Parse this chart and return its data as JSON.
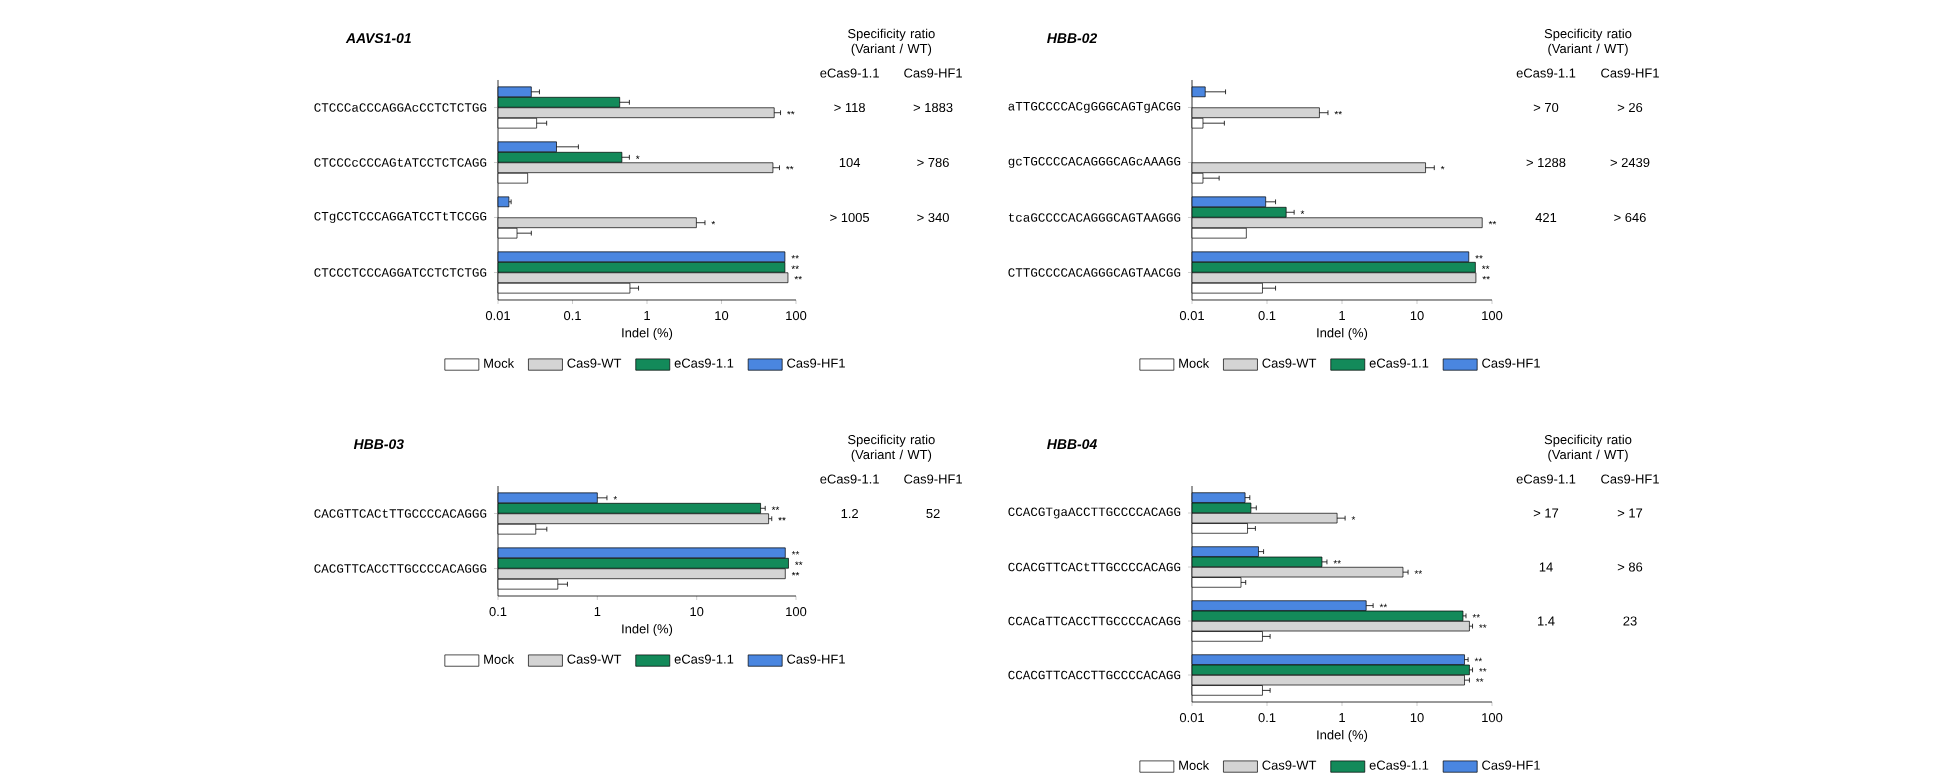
{
  "chart_data": [
    {
      "type": "bar",
      "orientation": "horizontal",
      "log": "x",
      "title": "AAVS1-01",
      "xlabel": "Indel (%)",
      "legend": "bottom",
      "xlim": [
        0.01,
        100
      ],
      "xticks": [
        0.01,
        0.1,
        1,
        10,
        100
      ],
      "categories": [
        "CTCCCaCCCAGGAcCCTCTCTGG",
        "CTCCCcCCCAGtATCCTCTCAGG",
        "CTgCCTCCCAGGATCCTtTCCGG",
        "CTCCCTCCCAGGATCCTCTCTGG"
      ],
      "series": [
        {
          "name": "Mock",
          "color": "#ffffff",
          "values": [
            0.033,
            0.025,
            0.018,
            0.59
          ],
          "errors": [
            [
              0.033,
              0.045
            ],
            null,
            [
              0.018,
              0.028
            ],
            [
              0.59,
              0.77
            ]
          ]
        },
        {
          "name": "Cas9-WT",
          "color": "#d4d4d4",
          "values": [
            51,
            49,
            4.6,
            78
          ],
          "errors": [
            [
              51,
              62
            ],
            [
              49,
              60
            ],
            [
              4.6,
              6.0
            ],
            null
          ],
          "value_labels": [
            "**",
            "**",
            "*",
            "**"
          ]
        },
        {
          "name": "eCas9-1.1",
          "color": "#138a5a",
          "values": [
            0.43,
            0.46,
            null,
            71
          ],
          "errors": [
            [
              0.43,
              0.58
            ],
            [
              0.46,
              0.58
            ],
            null,
            null
          ],
          "value_labels": [
            null,
            "*",
            null,
            "**"
          ]
        },
        {
          "name": "Cas9-HF1",
          "color": "#4a86e0",
          "values": [
            0.028,
            0.061,
            0.014,
            71
          ],
          "errors": [
            [
              0.028,
              0.036
            ],
            [
              0.061,
              0.12
            ],
            [
              0.014,
              0.015
            ],
            null
          ],
          "value_labels": [
            null,
            null,
            null,
            "**"
          ]
        }
      ],
      "annotations": [
        "Specificity ratio (Variant / WT)",
        "eCas9-1.1",
        "Cas9-HF1",
        "> 118",
        "> 1883",
        "104",
        "> 786",
        "> 1005",
        "> 340"
      ]
    },
    {
      "type": "bar",
      "orientation": "horizontal",
      "log": "x",
      "title": "HBB-02",
      "xlabel": "Indel (%)",
      "legend": "bottom",
      "xlim": [
        0.01,
        100
      ],
      "xticks": [
        0.01,
        0.1,
        1,
        10,
        100
      ],
      "categories": [
        "aTTGCCCCACgGGGCAGTgACGG",
        "gcTGCCCCACAGGGCAGcAAAGG",
        "tcaGCCCCACAGGGCAGTAAGGG",
        "CTTGCCCCACAGGGCAGTAACGG"
      ],
      "series": [
        {
          "name": "Mock",
          "color": "#ffffff",
          "values": [
            0.014,
            0.014,
            0.053,
            0.087
          ],
          "errors": [
            [
              0.014,
              0.027
            ],
            [
              0.014,
              0.023
            ],
            null,
            [
              0.087,
              0.13
            ]
          ]
        },
        {
          "name": "Cas9-WT",
          "color": "#d4d4d4",
          "values": [
            0.5,
            13,
            74,
            61
          ],
          "errors": [
            [
              0.5,
              0.65
            ],
            [
              13,
              17
            ],
            null,
            null
          ],
          "value_labels": [
            "**",
            "*",
            "**",
            "**"
          ]
        },
        {
          "name": "eCas9-1.1",
          "color": "#138a5a",
          "values": [
            null,
            null,
            0.18,
            60
          ],
          "errors": [
            null,
            null,
            [
              0.18,
              0.23
            ],
            null
          ],
          "value_labels": [
            null,
            null,
            "*",
            "**"
          ]
        },
        {
          "name": "Cas9-HF1",
          "color": "#4a86e0",
          "values": [
            0.015,
            null,
            0.096,
            49
          ],
          "errors": [
            [
              0.015,
              0.028
            ],
            null,
            [
              0.096,
              0.13
            ],
            null
          ],
          "value_labels": [
            null,
            null,
            null,
            "**"
          ]
        }
      ],
      "annotations": [
        "Specificity ratio (Variant / WT)",
        "eCas9-1.1",
        "Cas9-HF1",
        "> 70",
        "> 26",
        "> 1288",
        "> 2439",
        "421",
        "> 646"
      ]
    },
    {
      "type": "bar",
      "orientation": "horizontal",
      "log": "x",
      "title": "HBB-03",
      "xlabel": "Indel (%)",
      "legend": "bottom",
      "xlim": [
        0.1,
        100
      ],
      "xticks": [
        0.1,
        1,
        10,
        100
      ],
      "categories": [
        "CACGTTCACtTTGCCCCACAGGG",
        "CACGTTCACCTTGCCCCACAGGG"
      ],
      "series": [
        {
          "name": "Mock",
          "color": "#ffffff",
          "values": [
            0.24,
            0.4
          ],
          "errors": [
            [
              0.24,
              0.31
            ],
            [
              0.4,
              0.5
            ]
          ]
        },
        {
          "name": "Cas9-WT",
          "color": "#d4d4d4",
          "values": [
            53,
            78
          ],
          "errors": [
            [
              53,
              57
            ],
            null
          ],
          "value_labels": [
            "**",
            "**"
          ]
        },
        {
          "name": "eCas9-1.1",
          "color": "#138a5a",
          "values": [
            44,
            84
          ],
          "errors": [
            [
              44,
              49
            ],
            null
          ],
          "value_labels": [
            "**",
            "**"
          ]
        },
        {
          "name": "Cas9-HF1",
          "color": "#4a86e0",
          "values": [
            1.0,
            78
          ],
          "errors": [
            [
              1.0,
              1.25
            ],
            null
          ],
          "value_labels": [
            "*",
            "**"
          ]
        }
      ],
      "annotations": [
        "Specificity ratio (Variant / WT)",
        "eCas9-1.1",
        "Cas9-HF1",
        "1.2",
        "52"
      ]
    },
    {
      "type": "bar",
      "orientation": "horizontal",
      "log": "x",
      "title": "HBB-04",
      "xlabel": "Indel (%)",
      "legend": "bottom",
      "xlim": [
        0.01,
        100
      ],
      "xticks": [
        0.01,
        0.1,
        1,
        10,
        100
      ],
      "categories": [
        "CCACGTgaACCTTGCCCCACAGG",
        "CCACGTTCACtTTGCCCCACAGG",
        "CCACaTTCACCTTGCCCCACAGG",
        "CCACGTTCACCTTGCCCCACAGG"
      ],
      "series": [
        {
          "name": "Mock",
          "color": "#ffffff",
          "values": [
            0.055,
            0.045,
            0.087,
            0.087
          ],
          "errors": [
            [
              0.055,
              0.07
            ],
            [
              0.045,
              0.052
            ],
            [
              0.087,
              0.11
            ],
            [
              0.087,
              0.11
            ]
          ]
        },
        {
          "name": "Cas9-WT",
          "color": "#d4d4d4",
          "values": [
            0.86,
            6.5,
            50,
            43
          ],
          "errors": [
            [
              0.86,
              1.1
            ],
            [
              6.5,
              7.6
            ],
            [
              50,
              55
            ],
            [
              43,
              50
            ]
          ],
          "value_labels": [
            "*",
            "**",
            "**",
            "**"
          ]
        },
        {
          "name": "eCas9-1.1",
          "color": "#138a5a",
          "values": [
            0.061,
            0.54,
            41,
            50
          ],
          "errors": [
            [
              0.061,
              0.072
            ],
            [
              0.54,
              0.63
            ],
            [
              41,
              45
            ],
            [
              50,
              55
            ]
          ],
          "value_labels": [
            null,
            "**",
            "**",
            "**"
          ]
        },
        {
          "name": "Cas9-HF1",
          "color": "#4a86e0",
          "values": [
            0.051,
            0.077,
            2.1,
            43
          ],
          "errors": [
            [
              0.051,
              0.059
            ],
            [
              0.077,
              0.09
            ],
            [
              2.1,
              2.6
            ],
            [
              43,
              48
            ]
          ],
          "value_labels": [
            null,
            null,
            "**",
            "**"
          ]
        }
      ],
      "annotations": [
        "Specificity ratio (Variant / WT)",
        "eCas9-1.1",
        "Cas9-HF1",
        "> 17",
        "> 17",
        "14",
        "> 86",
        "1.4",
        "23"
      ]
    }
  ]
}
